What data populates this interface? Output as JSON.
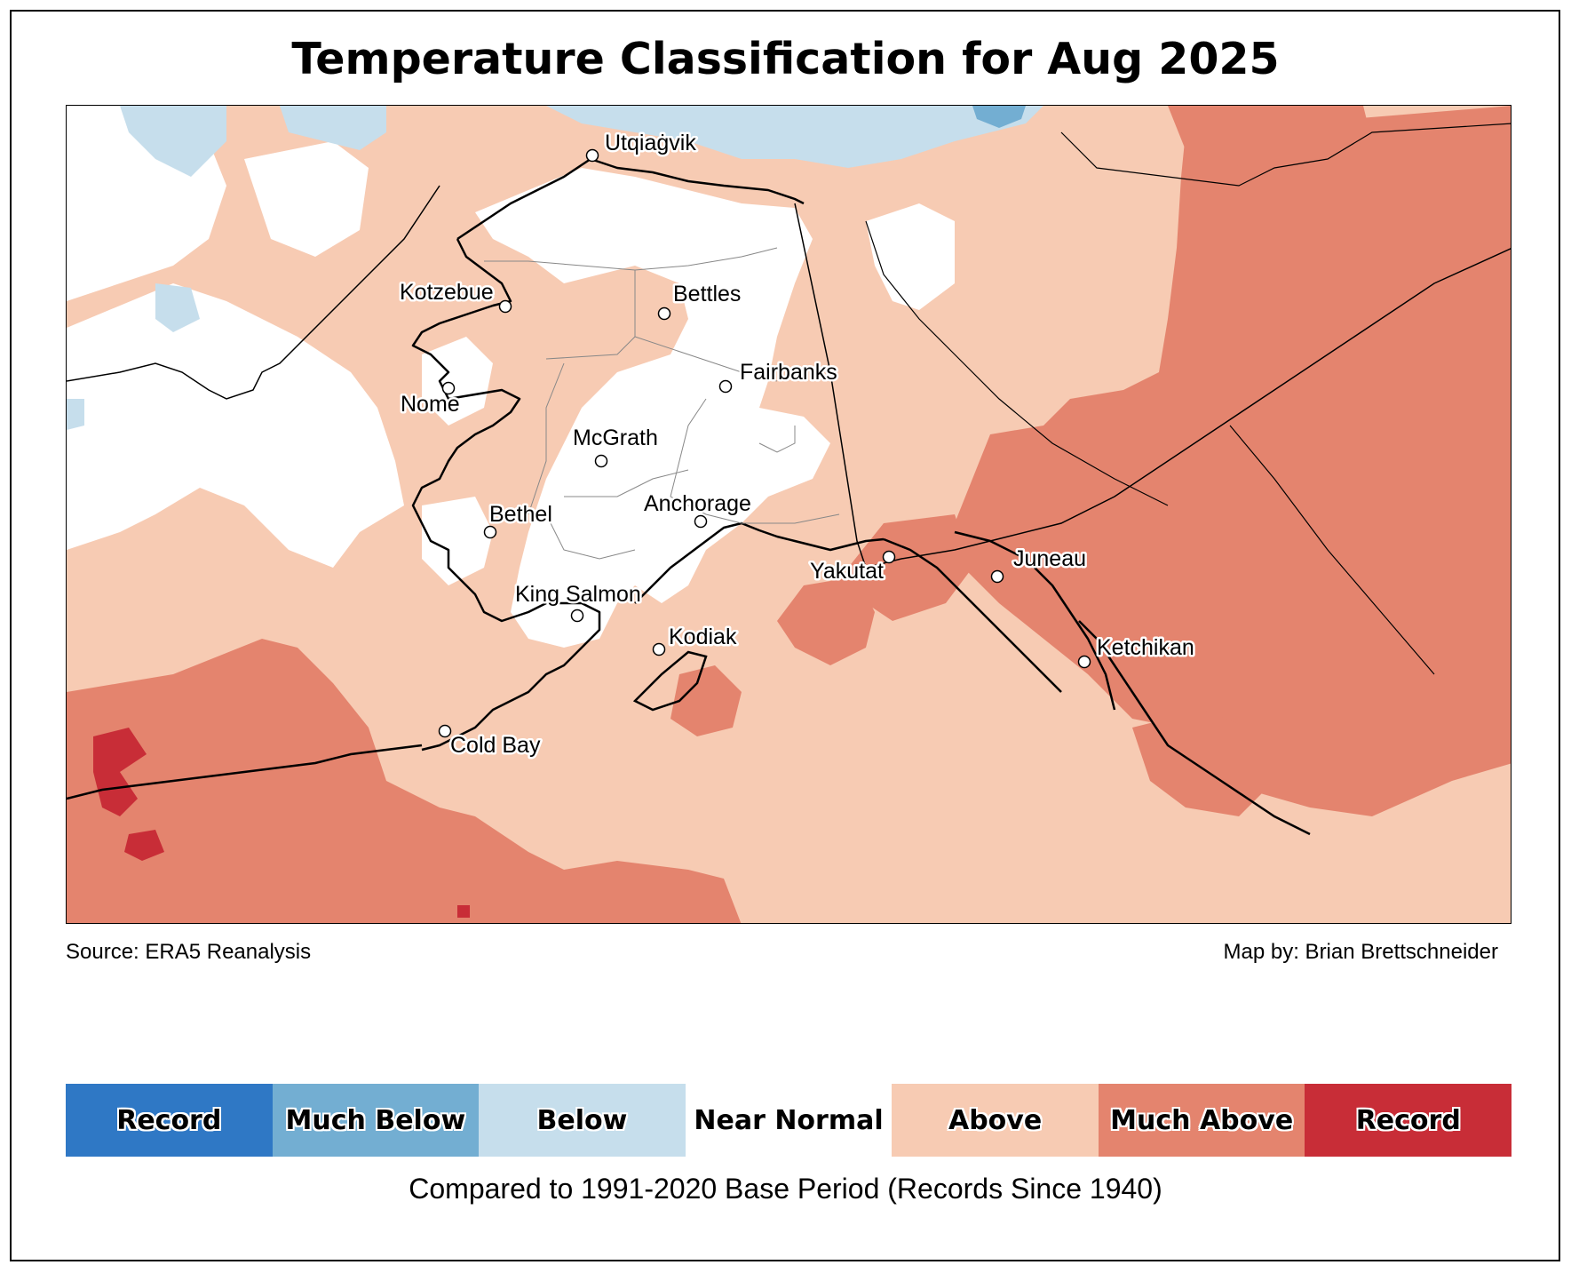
{
  "title": "Temperature Classification for Aug 2025",
  "source": "Source: ERA5 Reanalysis",
  "credit": "Map by: Brian Brettschneider",
  "caption": "Compared to 1991-2020 Base Period   (Records Since 1940)",
  "legend": [
    {
      "label": "Record",
      "color": "#2f78c5"
    },
    {
      "label": "Much Below",
      "color": "#73aed2"
    },
    {
      "label": "Below",
      "color": "#c6deec"
    },
    {
      "label": "Near Normal",
      "color": "#ffffff"
    },
    {
      "label": "Above",
      "color": "#f7cbb3"
    },
    {
      "label": "Much Above",
      "color": "#e4846e"
    },
    {
      "label": "Record",
      "color": "#c82d37"
    }
  ],
  "cities": [
    {
      "name": "Utqiaġvik"
    },
    {
      "name": "Kotzebue"
    },
    {
      "name": "Bettles"
    },
    {
      "name": "Nome"
    },
    {
      "name": "Fairbanks"
    },
    {
      "name": "McGrath"
    },
    {
      "name": "Bethel"
    },
    {
      "name": "Anchorage"
    },
    {
      "name": "Yakutat"
    },
    {
      "name": "Juneau"
    },
    {
      "name": "King Salmon"
    },
    {
      "name": "Kodiak"
    },
    {
      "name": "Ketchikan"
    },
    {
      "name": "Cold Bay"
    }
  ]
}
